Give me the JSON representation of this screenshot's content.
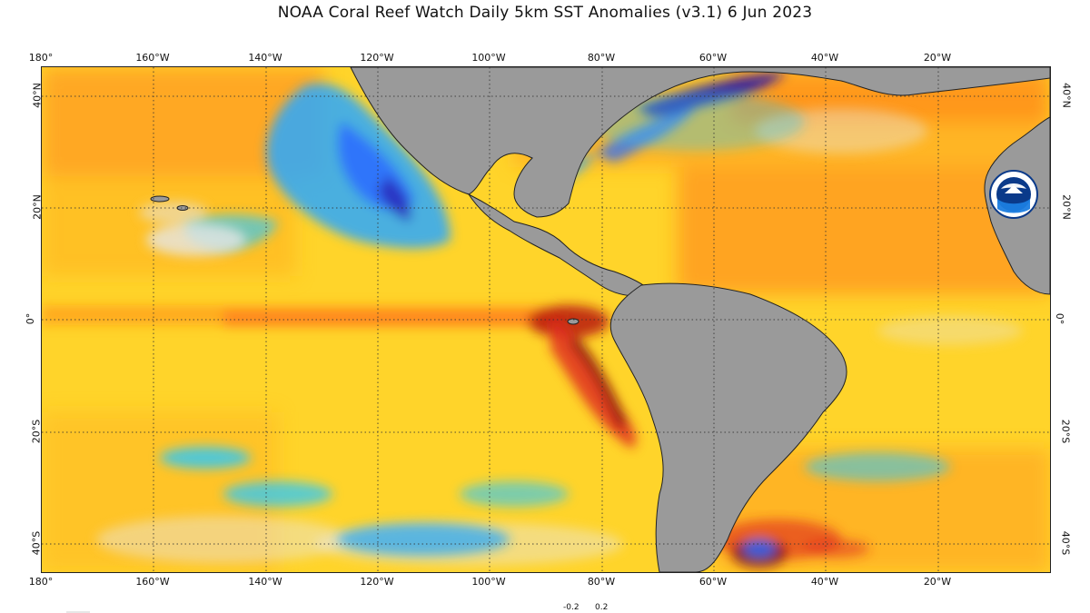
{
  "title": "NOAA Coral Reef Watch Daily 5km SST Anomalies  (v3.1)   6 Jun 2023",
  "map": {
    "region": "Eastern Pacific / Atlantic",
    "lon_range": [
      -180,
      0
    ],
    "lat_range": [
      -45,
      45
    ],
    "gridlines": "dotted",
    "colors": {
      "land": "#9a9a9a",
      "ocean_base": "#ffd42a",
      "warm_orange": "#ff8c1a",
      "hot_red": "#e0301e",
      "very_hot": "#7a0a0a",
      "cool_light": "#28c8ff",
      "cool_blue": "#2a6cff",
      "cold_deep": "#2a1aa8",
      "near_zero": "#e6e6e6"
    }
  },
  "axes": {
    "top": [
      "180°",
      "160°W",
      "140°W",
      "120°W",
      "100°W",
      "80°W",
      "60°W",
      "40°W",
      "20°W"
    ],
    "bottom": [
      "180°",
      "160°W",
      "140°W",
      "120°W",
      "100°W",
      "80°W",
      "60°W",
      "40°W",
      "20°W"
    ],
    "left": [
      "40°N",
      "20°N",
      "0°",
      "20°S",
      "40°S"
    ],
    "right": [
      "40°N",
      "20°N",
      "0°",
      "20°S",
      "40°S"
    ]
  },
  "legend": {
    "neg_label": "-0.2",
    "pos_label": "0.2"
  },
  "logo": {
    "text": "NOAA",
    "icon": "noaa-logo-icon"
  }
}
